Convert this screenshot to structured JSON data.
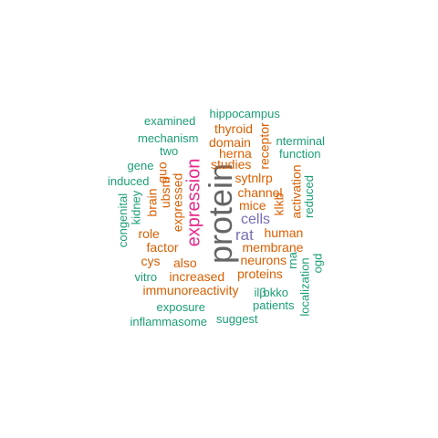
{
  "colors": {
    "green": "#1b9e77",
    "orange": "#d95f02",
    "purple": "#7570b3",
    "magenta": "#e7298a",
    "gray": "#666666"
  },
  "words": [
    {
      "text": "protein",
      "color": "gray"
    },
    {
      "text": "expression",
      "color": "magenta"
    },
    {
      "text": "cells",
      "color": "purple"
    },
    {
      "text": "rat",
      "color": "purple"
    },
    {
      "text": "mice",
      "color": "orange"
    },
    {
      "text": "channel",
      "color": "orange"
    },
    {
      "text": "increased",
      "color": "orange"
    },
    {
      "text": "immunoreactivity",
      "color": "orange"
    },
    {
      "text": "membrane",
      "color": "orange"
    },
    {
      "text": "neurons",
      "color": "orange"
    },
    {
      "text": "proteins",
      "color": "orange"
    },
    {
      "text": "human",
      "color": "orange"
    },
    {
      "text": "expressed",
      "color": "orange"
    },
    {
      "text": "studies",
      "color": "orange"
    },
    {
      "text": "domain",
      "color": "orange"
    },
    {
      "text": "thyroid",
      "color": "orange"
    },
    {
      "text": "herna",
      "color": "orange"
    },
    {
      "text": "sytnlrp",
      "color": "orange"
    },
    {
      "text": "receptor",
      "color": "orange"
    },
    {
      "text": "klkb",
      "color": "orange"
    },
    {
      "text": "activation",
      "color": "orange"
    },
    {
      "text": "brain",
      "color": "orange"
    },
    {
      "text": "ubsm",
      "color": "orange"
    },
    {
      "text": "guo",
      "color": "orange"
    },
    {
      "text": "role",
      "color": "orange"
    },
    {
      "text": "factor",
      "color": "orange"
    },
    {
      "text": "cys",
      "color": "orange"
    },
    {
      "text": "also",
      "color": "orange"
    },
    {
      "text": "hippocampus",
      "color": "green"
    },
    {
      "text": "examined",
      "color": "green"
    },
    {
      "text": "mechanism",
      "color": "green"
    },
    {
      "text": "two",
      "color": "green"
    },
    {
      "text": "gene",
      "color": "green"
    },
    {
      "text": "induced",
      "color": "green"
    },
    {
      "text": "kidney",
      "color": "green"
    },
    {
      "text": "congenital",
      "color": "green"
    },
    {
      "text": "nterminal",
      "color": "green"
    },
    {
      "text": "function",
      "color": "green"
    },
    {
      "text": "reduced",
      "color": "green"
    },
    {
      "text": "rna",
      "color": "green"
    },
    {
      "text": "ogd",
      "color": "green"
    },
    {
      "text": "localization",
      "color": "green"
    },
    {
      "text": "vitro",
      "color": "green"
    },
    {
      "text": "exposure",
      "color": "green"
    },
    {
      "text": "inflammasome",
      "color": "green"
    },
    {
      "text": "suggest",
      "color": "green"
    },
    {
      "text": "ilβ",
      "color": "green"
    },
    {
      "text": "bkko",
      "color": "green"
    },
    {
      "text": "patients",
      "color": "green"
    }
  ]
}
